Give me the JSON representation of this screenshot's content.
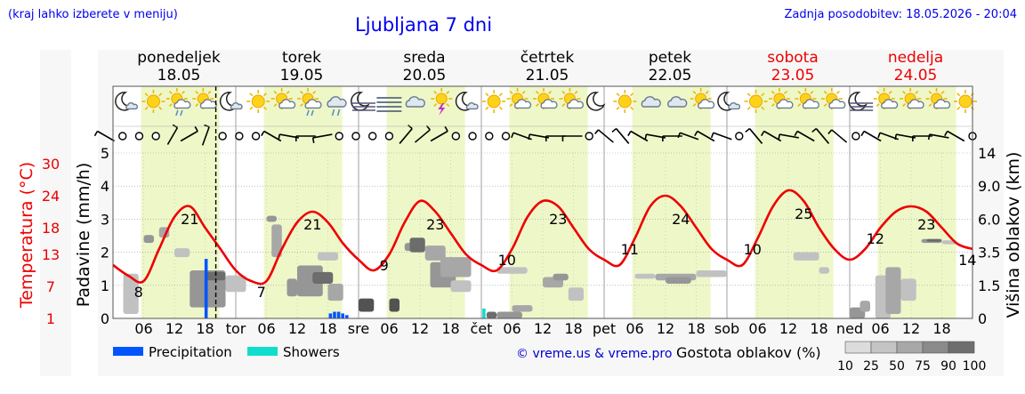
{
  "header": {
    "hint": "(kraj lahko izberete v meniju)",
    "title": "Ljubljana 7 dni",
    "updated": "Zadnja posodobitev: 18.05.2026 - 20:04"
  },
  "colors": {
    "temperature": "#ee0000",
    "precipitation": "#0055ff",
    "showers": "#11ddcc",
    "daylight": "#eef7c8",
    "weekend": "#ee0000",
    "link": "#0000cc"
  },
  "chart_data": {
    "type": "line",
    "title": "Ljubljana 7 dni",
    "days": [
      {
        "name": "ponedeljek",
        "date": "18.05",
        "short": "",
        "weekend": false
      },
      {
        "name": "torek",
        "date": "19.05",
        "short": "tor",
        "weekend": false
      },
      {
        "name": "sreda",
        "date": "20.05",
        "short": "sre",
        "weekend": false
      },
      {
        "name": "četrtek",
        "date": "21.05",
        "short": "čet",
        "weekend": false
      },
      {
        "name": "petek",
        "date": "22.05",
        "short": "pet",
        "weekend": false
      },
      {
        "name": "sobota",
        "date": "23.05",
        "short": "sob",
        "weekend": true
      },
      {
        "name": "nedelja",
        "date": "24.05",
        "short": "ned",
        "weekend": true
      }
    ],
    "hour_ticks": [
      "06",
      "12",
      "18"
    ],
    "x_range_hours": [
      0,
      168
    ],
    "current_time_hour": 20.1,
    "temperature": {
      "label": "Temperatura (°C)",
      "ticks": [
        1,
        7,
        13,
        18,
        24,
        30
      ],
      "range": [
        1,
        32
      ],
      "hours": [
        0,
        3,
        6,
        9,
        12,
        15,
        18,
        21,
        24,
        27,
        30,
        33,
        36,
        39,
        42,
        45,
        48,
        51,
        54,
        57,
        60,
        63,
        66,
        69,
        72,
        75,
        78,
        81,
        84,
        87,
        90,
        93,
        96,
        99,
        102,
        105,
        108,
        111,
        114,
        117,
        120,
        123,
        126,
        129,
        132,
        135,
        138,
        141,
        144,
        147,
        150,
        153,
        156,
        159,
        162,
        165,
        168
      ],
      "values": [
        11,
        9,
        8,
        14,
        20,
        22,
        18,
        14,
        10,
        8,
        8,
        14,
        19,
        21,
        19,
        15,
        12,
        10,
        13,
        19,
        23,
        21,
        17,
        13,
        11,
        10,
        14,
        20,
        23,
        22,
        18,
        14,
        12,
        11,
        16,
        22,
        24,
        22,
        18,
        14,
        12,
        11,
        16,
        22,
        25,
        23,
        18,
        14,
        12,
        14,
        18,
        21,
        22,
        21,
        18,
        15,
        14
      ],
      "labels": [
        {
          "hour": 5,
          "value": "8"
        },
        {
          "hour": 15,
          "value": "21"
        },
        {
          "hour": 29,
          "value": "7"
        },
        {
          "hour": 39,
          "value": "21"
        },
        {
          "hour": 53,
          "value": "9"
        },
        {
          "hour": 63,
          "value": "23"
        },
        {
          "hour": 77,
          "value": "10"
        },
        {
          "hour": 87,
          "value": "23"
        },
        {
          "hour": 101,
          "value": "11"
        },
        {
          "hour": 111,
          "value": "24"
        },
        {
          "hour": 125,
          "value": "10"
        },
        {
          "hour": 135,
          "value": "25"
        },
        {
          "hour": 149,
          "value": "12"
        },
        {
          "hour": 159,
          "value": "23"
        },
        {
          "hour": 167,
          "value": "14"
        }
      ]
    },
    "precipitation": {
      "label": "Padavine (mm/h)",
      "ticks": [
        0,
        1,
        2,
        3,
        4,
        5
      ],
      "range": [
        0,
        5
      ],
      "rain": [
        {
          "hour": 18.2,
          "value": 1.8
        },
        {
          "hour": 42.5,
          "value": 0.15
        },
        {
          "hour": 43.3,
          "value": 0.2
        },
        {
          "hour": 44.1,
          "value": 0.2
        },
        {
          "hour": 44.9,
          "value": 0.15
        },
        {
          "hour": 45.7,
          "value": 0.1
        }
      ],
      "showers": [
        {
          "hour": 72.5,
          "value": 0.3
        }
      ]
    },
    "cloud_height": {
      "label": "Višina oblakov (km)",
      "ticks": [
        "0",
        "1.5",
        "3.5",
        "6.0",
        "9.0",
        "14"
      ]
    },
    "cloud_cells": [
      {
        "h0": 2,
        "h1": 5,
        "k0": 0.2,
        "k1": 2.2,
        "d": 25
      },
      {
        "h0": 6,
        "h1": 8,
        "k0": 4.2,
        "k1": 4.8,
        "d": 50
      },
      {
        "h0": 9,
        "h1": 11,
        "k0": 4.6,
        "k1": 5.4,
        "d": 40
      },
      {
        "h0": 12,
        "h1": 15,
        "k0": 3.2,
        "k1": 3.8,
        "d": 25
      },
      {
        "h0": 15,
        "h1": 22,
        "k0": 0.5,
        "k1": 2.4,
        "d": 50
      },
      {
        "h0": 18,
        "h1": 22,
        "k0": 1.8,
        "k1": 2.3,
        "d": 75
      },
      {
        "h0": 22,
        "h1": 26,
        "k0": 1.2,
        "k1": 2.1,
        "d": 25
      },
      {
        "h0": 30,
        "h1": 32,
        "k0": 5.8,
        "k1": 6.3,
        "d": 50
      },
      {
        "h0": 31,
        "h1": 33,
        "k0": 3.2,
        "k1": 5.6,
        "d": 40
      },
      {
        "h0": 34,
        "h1": 36,
        "k0": 1.0,
        "k1": 1.9,
        "d": 50
      },
      {
        "h0": 36,
        "h1": 41,
        "k0": 1.0,
        "k1": 2.7,
        "d": 50
      },
      {
        "h0": 39,
        "h1": 43,
        "k0": 1.6,
        "k1": 2.3,
        "d": 75
      },
      {
        "h0": 40,
        "h1": 44,
        "k0": 3.0,
        "k1": 3.5,
        "d": 25
      },
      {
        "h0": 42,
        "h1": 45,
        "k0": 0.8,
        "k1": 1.6,
        "d": 40
      },
      {
        "h0": 48,
        "h1": 51,
        "k0": 0.3,
        "k1": 0.9,
        "d": 90
      },
      {
        "h0": 54,
        "h1": 56,
        "k0": 0.3,
        "k1": 0.9,
        "d": 90
      },
      {
        "h0": 57,
        "h1": 61,
        "k0": 3.6,
        "k1": 4.2,
        "d": 50
      },
      {
        "h0": 58,
        "h1": 61,
        "k0": 3.5,
        "k1": 4.6,
        "d": 75
      },
      {
        "h0": 61,
        "h1": 65,
        "k0": 3.0,
        "k1": 4.0,
        "d": 40
      },
      {
        "h0": 62,
        "h1": 67,
        "k0": 1.4,
        "k1": 2.9,
        "d": 50
      },
      {
        "h0": 64,
        "h1": 70,
        "k0": 2.0,
        "k1": 3.2,
        "d": 40
      },
      {
        "h0": 66,
        "h1": 70,
        "k0": 1.2,
        "k1": 1.8,
        "d": 25
      },
      {
        "h0": 73,
        "h1": 75,
        "k0": 0.0,
        "k1": 0.3,
        "d": 75
      },
      {
        "h0": 75,
        "h1": 80,
        "k0": 0.0,
        "k1": 0.3,
        "d": 50
      },
      {
        "h0": 75,
        "h1": 81,
        "k0": 2.2,
        "k1": 2.6,
        "d": 25
      },
      {
        "h0": 78,
        "h1": 82,
        "k0": 0.3,
        "k1": 0.6,
        "d": 40
      },
      {
        "h0": 84,
        "h1": 88,
        "k0": 1.4,
        "k1": 2.0,
        "d": 40
      },
      {
        "h0": 86,
        "h1": 89,
        "k0": 1.8,
        "k1": 2.2,
        "d": 50
      },
      {
        "h0": 89,
        "h1": 92,
        "k0": 0.8,
        "k1": 1.4,
        "d": 25
      },
      {
        "h0": 102,
        "h1": 106,
        "k0": 1.9,
        "k1": 2.2,
        "d": 25
      },
      {
        "h0": 106,
        "h1": 114,
        "k0": 1.8,
        "k1": 2.2,
        "d": 40
      },
      {
        "h0": 108,
        "h1": 113,
        "k0": 1.6,
        "k1": 2.0,
        "d": 50
      },
      {
        "h0": 114,
        "h1": 120,
        "k0": 2.0,
        "k1": 2.4,
        "d": 25
      },
      {
        "h0": 133,
        "h1": 138,
        "k0": 3.0,
        "k1": 3.5,
        "d": 25
      },
      {
        "h0": 138,
        "h1": 140,
        "k0": 2.2,
        "k1": 2.6,
        "d": 25
      },
      {
        "h0": 144,
        "h1": 147,
        "k0": 0.0,
        "k1": 0.5,
        "d": 50
      },
      {
        "h0": 146,
        "h1": 148,
        "k0": 0.3,
        "k1": 0.8,
        "d": 40
      },
      {
        "h0": 149,
        "h1": 152,
        "k0": 0.0,
        "k1": 2.1,
        "d": 25
      },
      {
        "h0": 151,
        "h1": 154,
        "k0": 0.2,
        "k1": 2.6,
        "d": 40
      },
      {
        "h0": 154,
        "h1": 157,
        "k0": 0.8,
        "k1": 1.9,
        "d": 25
      },
      {
        "h0": 158,
        "h1": 162,
        "k0": 4.2,
        "k1": 4.5,
        "d": 50
      },
      {
        "h0": 159,
        "h1": 162,
        "k0": 4.3,
        "k1": 4.5,
        "d": 75
      },
      {
        "h0": 162,
        "h1": 165,
        "k0": 4.1,
        "k1": 4.4,
        "d": 25
      }
    ],
    "icons": [
      "night-cloudy",
      "sun",
      "sun-cloud-rain",
      "sun-cloud",
      "night-cloudy",
      "sun",
      "sun-cloud",
      "sun-cloud-rain",
      "cloud-rain",
      "night-fog",
      "fog",
      "cloud",
      "thunder",
      "night-cloudy",
      "sun",
      "sun-cloud",
      "sun-cloud",
      "sun-cloud",
      "night",
      "sun",
      "cloud",
      "cloud",
      "sun-cloud",
      "night-cloudy",
      "sun",
      "sun-cloud",
      "sun-cloud",
      "sun-cloud",
      "night-fog",
      "sun-cloud",
      "sun-cloud",
      "sun-cloud",
      "sun"
    ],
    "wind_dirs": [
      300,
      0,
      0,
      0,
      30,
      60,
      20,
      0,
      0,
      0,
      300,
      280,
      270,
      260,
      0,
      0,
      0,
      0,
      40,
      50,
      60,
      0,
      0,
      0,
      0,
      290,
      280,
      270,
      270,
      0,
      310,
      320,
      300,
      280,
      270,
      290,
      300,
      290,
      0,
      320,
      300,
      280,
      300,
      320,
      310,
      0,
      300,
      290,
      280,
      270,
      280,
      300,
      0
    ]
  },
  "legend": {
    "precipitation": "Precipitation",
    "showers": "Showers",
    "copyright": "© vreme.us & vreme.pro",
    "cloud_density_label": "Gostota oblakov (%)",
    "cloud_density_ticks": [
      "10",
      "25",
      "50",
      "75",
      "90",
      "100"
    ]
  }
}
